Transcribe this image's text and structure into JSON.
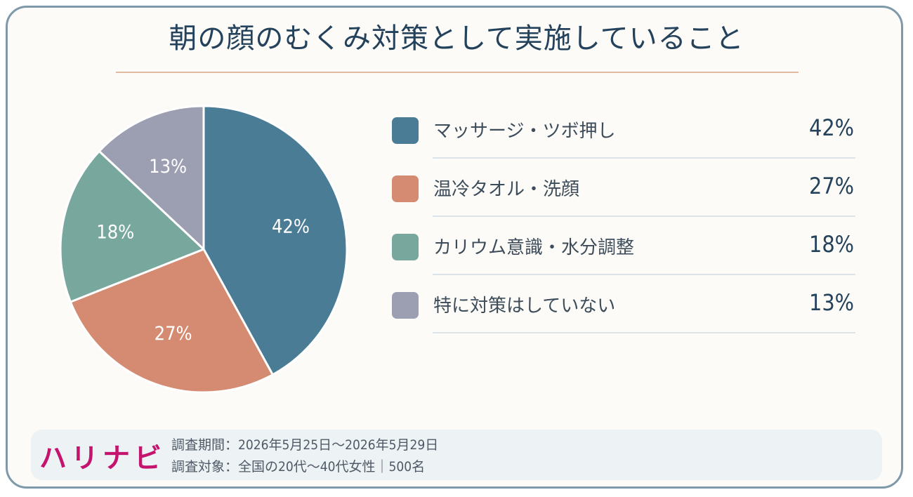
{
  "title": "朝の顔のむくみ対策として実施していること",
  "chart_data": {
    "type": "pie",
    "categories": [
      "マッサージ・ツボ押し",
      "温冷タオル・洗顔",
      "カリウム意識・水分調整",
      "特に対策はしていない"
    ],
    "values": [
      42,
      27,
      18,
      13
    ],
    "value_labels": [
      "42%",
      "27%",
      "18%",
      "13%"
    ],
    "colors": [
      "#4a7d95",
      "#d48b72",
      "#78a89d",
      "#9c9eb1"
    ],
    "start": "12 o'clock, clockwise",
    "legend_position": "right"
  },
  "legend": [
    {
      "label": "マッサージ・ツボ押し",
      "value": "42%",
      "color": "#4a7d95"
    },
    {
      "label": "温冷タオル・洗顔",
      "value": "27%",
      "color": "#d48b72"
    },
    {
      "label": "カリウム意識・水分調整",
      "value": "18%",
      "color": "#78a89d"
    },
    {
      "label": "特に対策はしていない",
      "value": "13%",
      "color": "#9c9eb1"
    }
  ],
  "footer": {
    "logo": "ハリナビ",
    "period": "調査期間：2026年5月25日～2026年5月29日",
    "target": "調査対象：全国の20代～40代女性｜500名"
  }
}
